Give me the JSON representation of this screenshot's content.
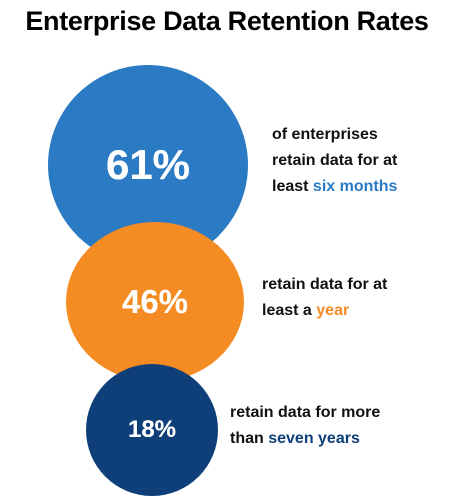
{
  "title": "Enterprise Data Retention Rates",
  "chart_data": {
    "type": "bubble",
    "title": "Enterprise Data Retention Rates",
    "unit": "%",
    "items": [
      {
        "value": 61,
        "display": "61%",
        "color": "#2a7bc4",
        "label_lines": [
          [
            {
              "text": "of enterprises"
            }
          ],
          [
            {
              "text": "retain data for at"
            }
          ],
          [
            {
              "text": "least "
            },
            {
              "text": "six months",
              "color": "#2a7bc4"
            }
          ]
        ]
      },
      {
        "value": 46,
        "display": "46%",
        "color": "#f58c23",
        "label_lines": [
          [
            {
              "text": "retain data for at"
            }
          ],
          [
            {
              "text": "least a "
            },
            {
              "text": "year",
              "color": "#f58c23"
            }
          ]
        ]
      },
      {
        "value": 18,
        "display": "18%",
        "color": "#0e3f78",
        "label_lines": [
          [
            {
              "text": "retain data for more"
            }
          ],
          [
            {
              "text": "than "
            },
            {
              "text": "seven years",
              "color": "#0e3f78"
            }
          ]
        ]
      }
    ]
  }
}
